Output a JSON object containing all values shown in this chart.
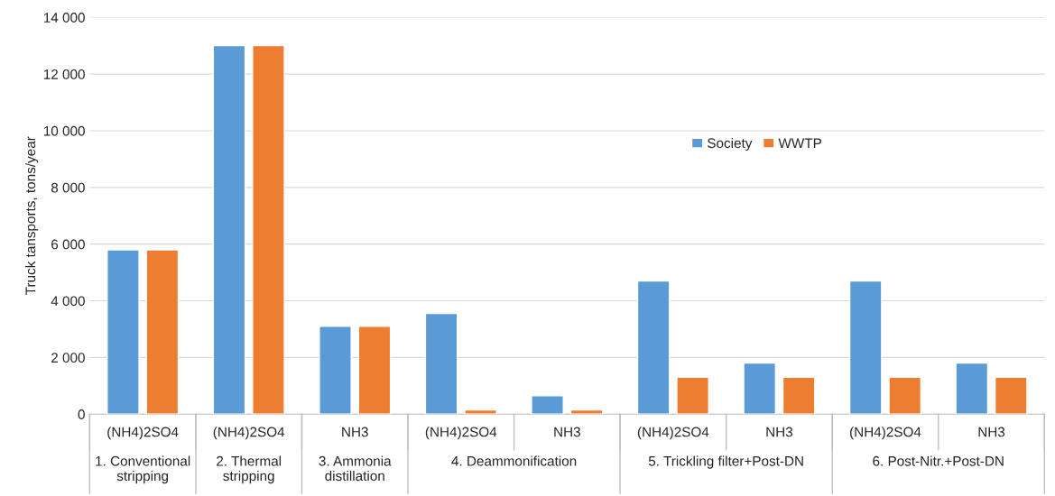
{
  "chart_data": {
    "type": "bar",
    "ylabel": "Truck tansports, tons/year",
    "categories": [
      "(NH4)2SO4",
      "(NH4)2SO4",
      "NH3",
      "(NH4)2SO4",
      "NH3",
      "(NH4)2SO4",
      "NH3",
      "(NH4)2SO4",
      "NH3"
    ],
    "series": [
      {
        "name": "Society",
        "color": "#5b9bd5",
        "values": [
          5800,
          13000,
          3100,
          3550,
          650,
          4700,
          1800,
          4700,
          1800
        ]
      },
      {
        "name": "WWTP",
        "color": "#ed7d31",
        "values": [
          5800,
          13000,
          3100,
          150,
          150,
          1300,
          1300,
          1300,
          1300
        ]
      }
    ],
    "annotations": [
      "1. Conventional stripping",
      "2. Thermal stripping",
      "3. Ammonia distillation",
      "4. Deammonification",
      "5. Trickling filter+Post-DN",
      "6. Post-Nitr.+Post-DN"
    ],
    "ylim": [
      0,
      14000
    ],
    "yticks": [
      0,
      {
        "value": 2000,
        "label": "2 000"
      },
      {
        "value": 4000,
        "label": "4 000"
      },
      {
        "value": 6000,
        "label": "6 000"
      },
      {
        "value": 8000,
        "label": "8 000"
      },
      {
        "value": 10000,
        "label": "10 000"
      },
      {
        "value": 12000,
        "label": "12 000"
      },
      {
        "value": 14000,
        "label": "14 000"
      }
    ],
    "grid": "y",
    "legend": "right"
  }
}
